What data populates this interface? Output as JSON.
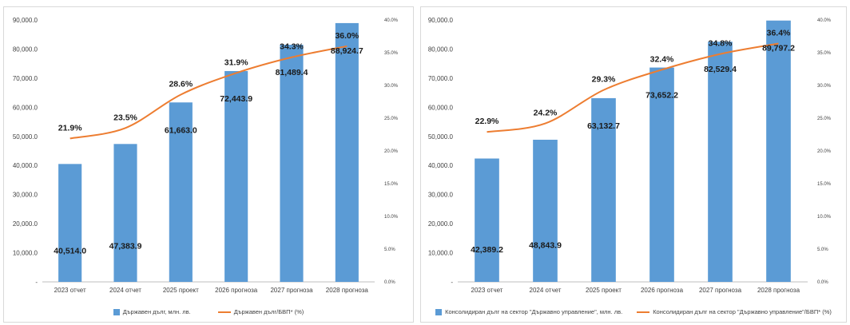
{
  "colors": {
    "bar": "#5b9bd5",
    "line": "#ed7d31",
    "axis": "#bfbfbf",
    "text": "#404040"
  },
  "chart_data": [
    {
      "type": "bar",
      "categories": [
        "2023 отчет",
        "2024 отчет",
        "2025 проект",
        "2026 прогноза",
        "2027 прогноза",
        "2028 прогноза"
      ],
      "y_ticks": [
        "-",
        "10,000.0",
        "20,000.0",
        "30,000.0",
        "40,000.0",
        "50,000.0",
        "60,000.0",
        "70,000.0",
        "80,000.0",
        "90,000.0"
      ],
      "y2_ticks": [
        "0.0%",
        "5.0%",
        "10.0%",
        "15.0%",
        "20.0%",
        "25.0%",
        "30.0%",
        "35.0%",
        "40.0%"
      ],
      "ylim": [
        0,
        90000
      ],
      "y2lim": [
        0,
        40
      ],
      "series": [
        {
          "name": "Държавен дълг, млн. лв.",
          "type": "bar",
          "values": [
            40514.0,
            47383.9,
            61663.0,
            72443.9,
            81489.4,
            88924.7
          ],
          "labels": [
            "40,514.0",
            "47,383.9",
            "61,663.0",
            "72,443.9",
            "81,489.4",
            "88,924.7"
          ]
        },
        {
          "name": "Държавен дълг/БВП* (%)",
          "type": "line",
          "axis": "right",
          "values": [
            21.9,
            23.5,
            28.6,
            31.9,
            34.3,
            36.0
          ],
          "labels": [
            "21.9%",
            "23.5%",
            "28.6%",
            "31.9%",
            "34.3%",
            "36.0%"
          ]
        }
      ],
      "legend": "bottom",
      "grid": false
    },
    {
      "type": "bar",
      "categories": [
        "2023 отчет",
        "2024 отчет",
        "2025 проект",
        "2026 прогноза",
        "2027 прогноза",
        "2028 прогноза"
      ],
      "y_ticks": [
        "-",
        "10,000.0",
        "20,000.0",
        "30,000.0",
        "40,000.0",
        "50,000.0",
        "60,000.0",
        "70,000.0",
        "80,000.0",
        "90,000.0"
      ],
      "y2_ticks": [
        "0.0%",
        "5.0%",
        "10.0%",
        "15.0%",
        "20.0%",
        "25.0%",
        "30.0%",
        "35.0%",
        "40.0%"
      ],
      "ylim": [
        0,
        90000
      ],
      "y2lim": [
        0,
        40
      ],
      "series": [
        {
          "name": "Консолидиран дълг на сектор \"Държавно управление\", млн. лв.",
          "type": "bar",
          "values": [
            42389.2,
            48843.9,
            63132.7,
            73652.2,
            82529.4,
            89797.2
          ],
          "labels": [
            "42,389.2",
            "48,843.9",
            "63,132.7",
            "73,652.2",
            "82,529.4",
            "89,797.2"
          ]
        },
        {
          "name": "Консолидиран дълг на сектор \"Държавно управление\"/БВП* (%)",
          "type": "line",
          "axis": "right",
          "values": [
            22.9,
            24.2,
            29.3,
            32.4,
            34.8,
            36.4
          ],
          "labels": [
            "22.9%",
            "24.2%",
            "29.3%",
            "32.4%",
            "34.8%",
            "36.4%"
          ]
        }
      ],
      "legend": "bottom",
      "grid": false
    }
  ]
}
